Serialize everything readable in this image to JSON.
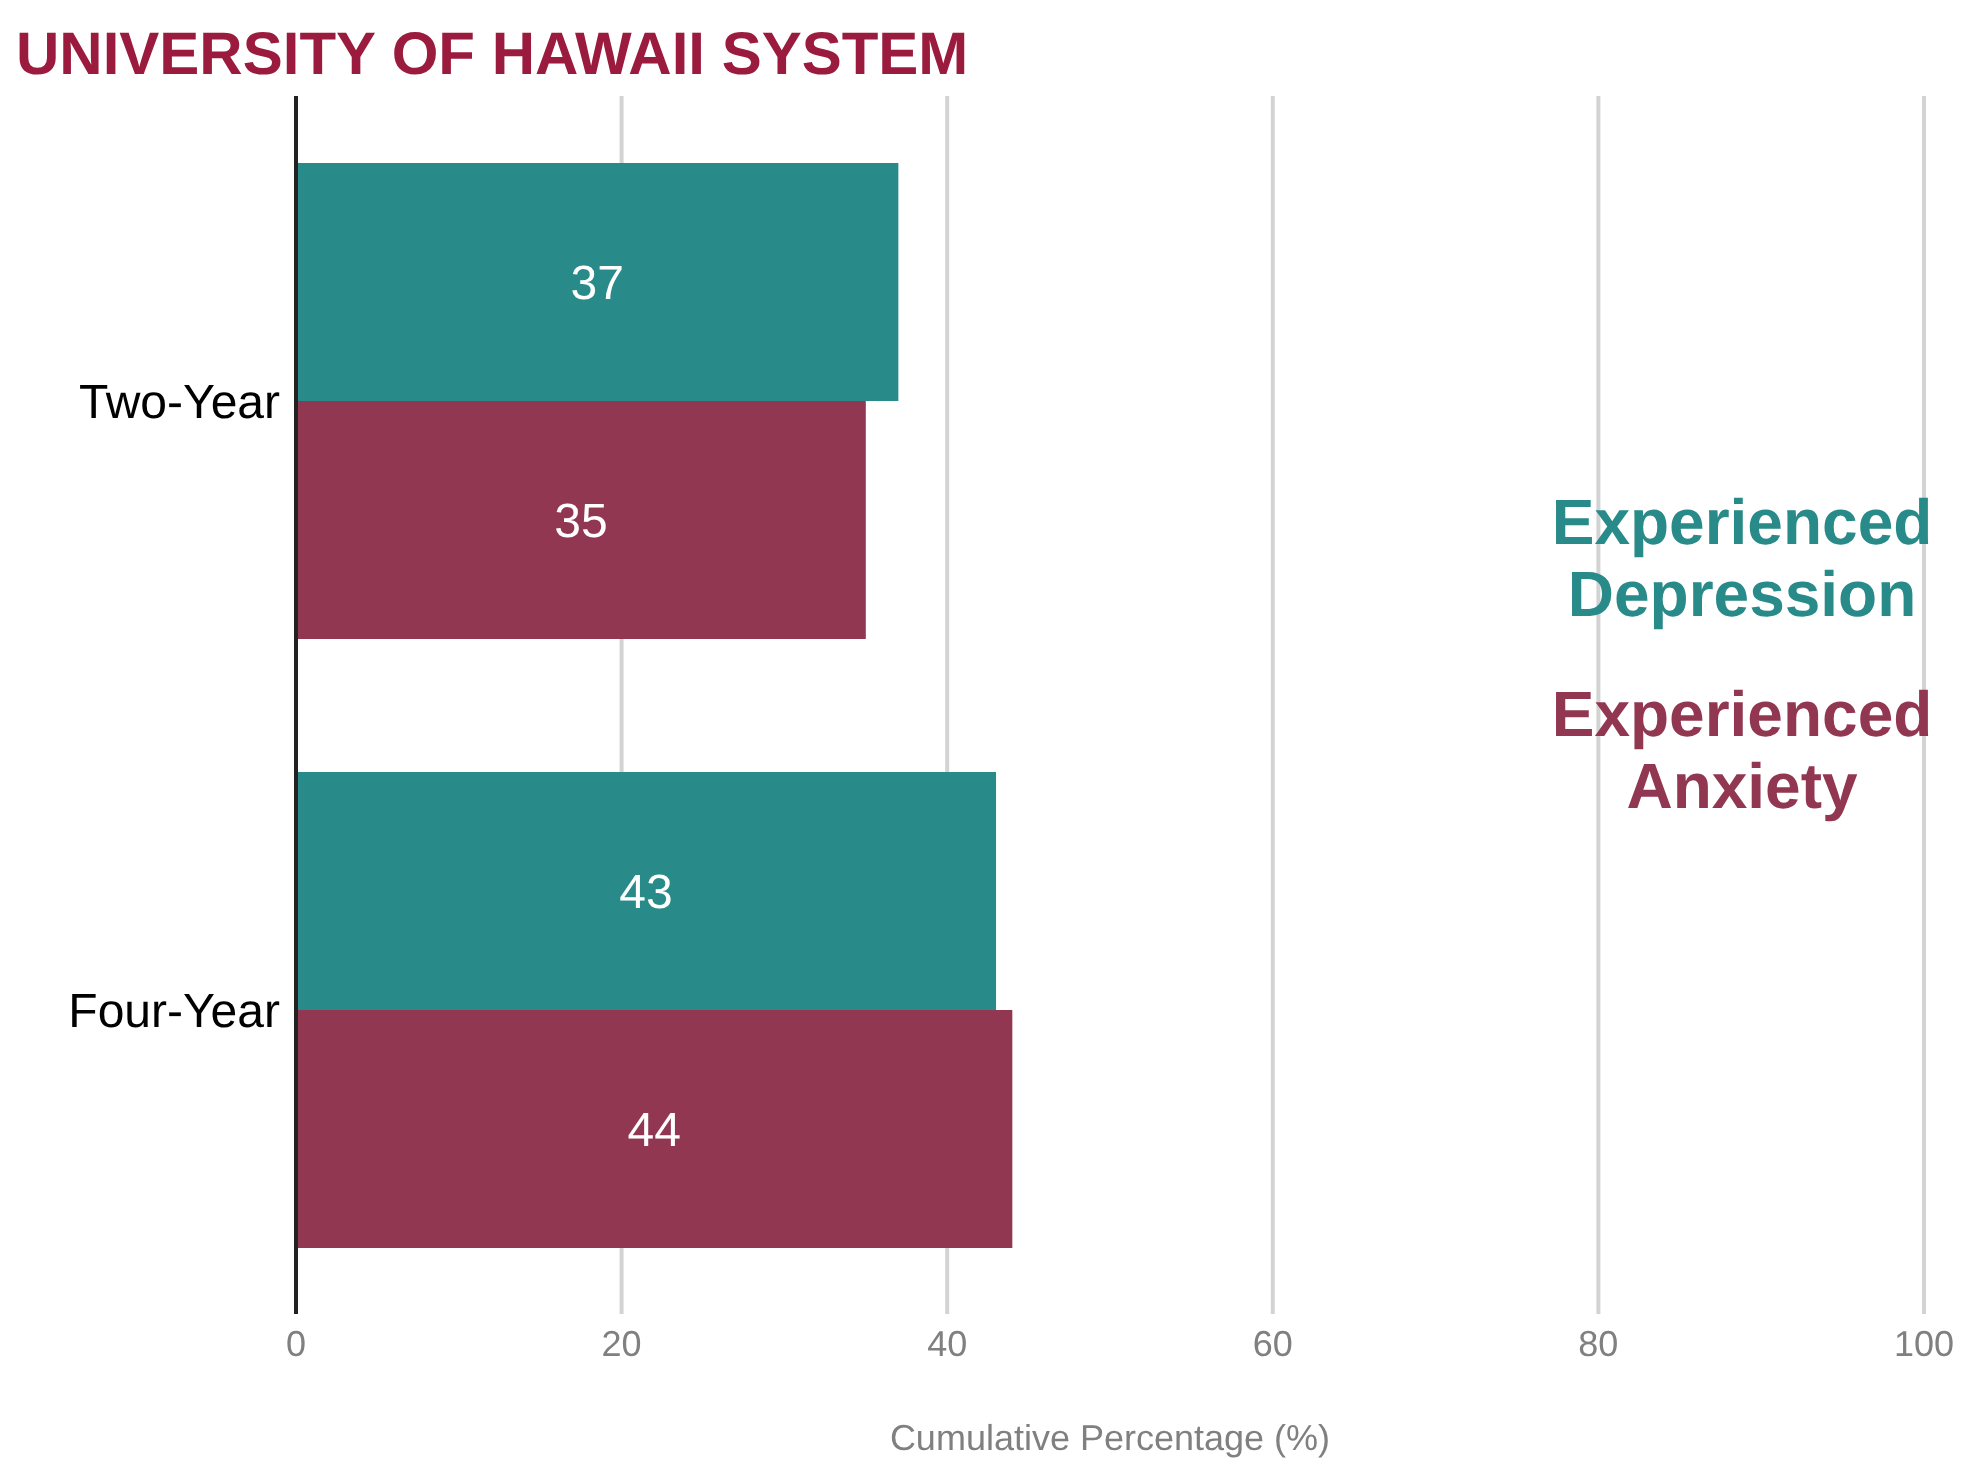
{
  "chart_data": {
    "type": "bar",
    "orientation": "horizontal",
    "title": "UNIVERSITY OF HAWAII SYSTEM",
    "xlabel": "Cumulative Percentage (%)",
    "categories": [
      "Two-Year",
      "Four-Year"
    ],
    "series": [
      {
        "name": "Experienced Depression",
        "color": "#288a89",
        "values": [
          37,
          43
        ]
      },
      {
        "name": "Experienced Anxiety",
        "color": "#923752",
        "values": [
          35,
          44
        ]
      }
    ],
    "xlim": [
      0,
      100
    ],
    "xticks": [
      0,
      20,
      40,
      60,
      80,
      100
    ],
    "grid": "x",
    "legend": "right",
    "data_labels": true
  }
}
